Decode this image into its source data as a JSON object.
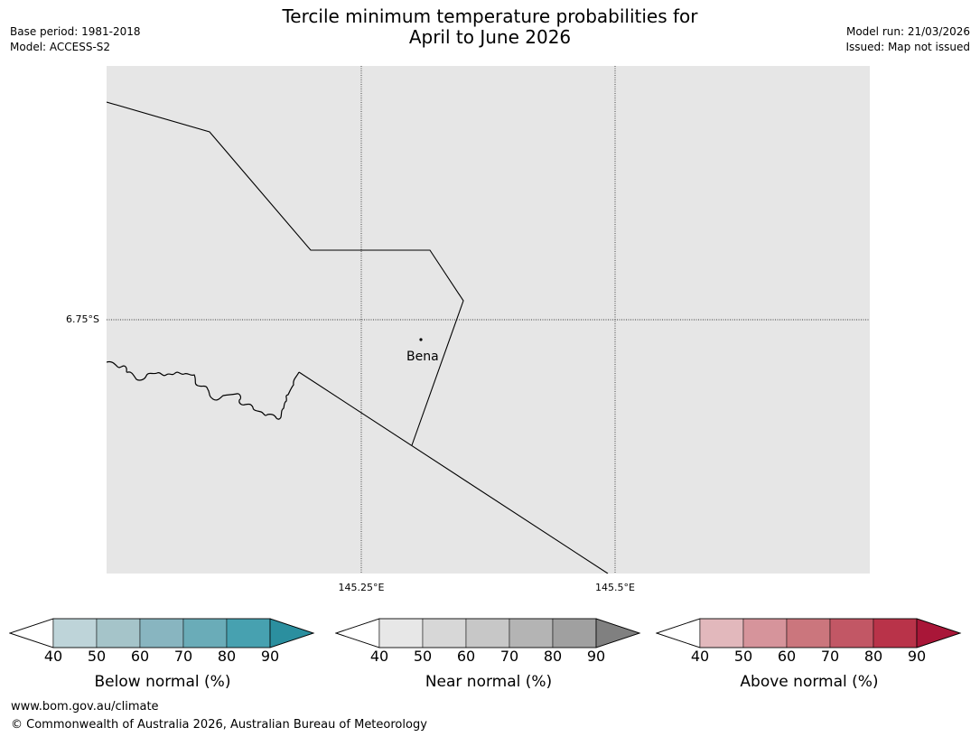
{
  "header": {
    "base_period": "Base period: 1981-2018",
    "model": "Model: ACCESS-S2",
    "model_run": "Model run: 21/03/2026",
    "issued": "Issued: Map not issued",
    "title_line1": "Tercile minimum temperature probabilities for",
    "title_line2": "April to June 2026"
  },
  "map": {
    "background_color": "#e6e6e6",
    "latitude_labels": [
      "6.75°S"
    ],
    "longitude_labels": [
      "145.25°E",
      "145.5°E"
    ],
    "places": [
      {
        "name": "Bena"
      }
    ]
  },
  "colorbars": [
    {
      "title": "Below normal (%)",
      "ticks": [
        "40",
        "50",
        "60",
        "70",
        "80",
        "90"
      ],
      "colors": [
        "#ffffff",
        "#bed4d9",
        "#a5c4c9",
        "#88b5c0",
        "#6aacb8",
        "#47a1b0",
        "#2b8f9f"
      ]
    },
    {
      "title": "Near normal (%)",
      "ticks": [
        "40",
        "50",
        "60",
        "70",
        "80",
        "90"
      ],
      "colors": [
        "#ffffff",
        "#e7e7e7",
        "#d7d7d7",
        "#c7c7c7",
        "#b4b4b4",
        "#a0a0a0",
        "#808080"
      ]
    },
    {
      "title": "Above normal (%)",
      "ticks": [
        "40",
        "50",
        "60",
        "70",
        "80",
        "90"
      ],
      "colors": [
        "#ffffff",
        "#e2b8bc",
        "#d6949b",
        "#cb767d",
        "#c25765",
        "#b93349",
        "#a91638"
      ]
    }
  ],
  "footer": {
    "website": "www.bom.gov.au/climate",
    "copyright": "© Commonwealth of Australia 2026, Australian Bureau of Meteorology"
  }
}
